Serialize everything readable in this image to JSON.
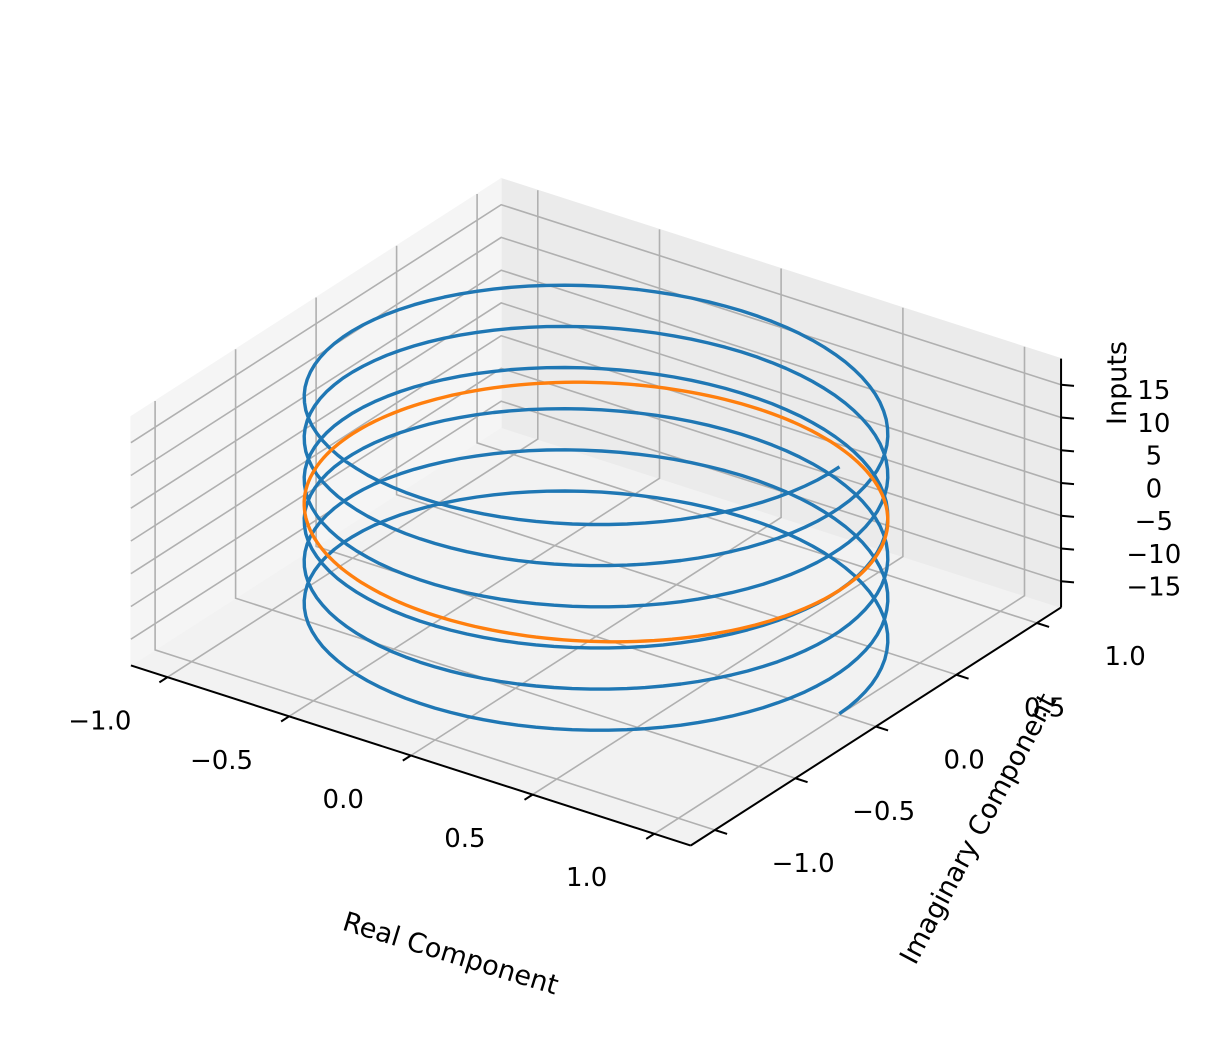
{
  "chart_data": {
    "type": "line",
    "projection": "3d",
    "xlabel": "Real Component",
    "ylabel": "Imaginary Component",
    "zlabel": "Inputs",
    "xlim": [
      -1.15,
      1.15
    ],
    "ylim": [
      -1.15,
      1.15
    ],
    "zlim": [
      -19,
      19
    ],
    "x_ticks": [
      -1.0,
      -0.5,
      0.0,
      0.5,
      1.0
    ],
    "x_tick_labels": [
      "−1.0",
      "−0.5",
      "0.0",
      "0.5",
      "1.0"
    ],
    "y_ticks": [
      -1.0,
      -0.5,
      0.0,
      0.5,
      1.0
    ],
    "y_tick_labels": [
      "−1.0",
      "−0.5",
      "0.0",
      "0.5",
      "1.0"
    ],
    "z_ticks": [
      -15,
      -10,
      -5,
      0,
      5,
      10,
      15
    ],
    "z_tick_labels": [
      "−15",
      "−10",
      "−5",
      "0",
      "5",
      "10",
      "15"
    ],
    "grid": true,
    "series": [
      {
        "color": "#1f77b4",
        "curve": "helix (cos t, sin t, t)",
        "t_range": [
          -18.85,
          18.85
        ],
        "samples": 600
      },
      {
        "color": "#ff7f0e",
        "curve": "unit circle (cos t, sin t, 0)",
        "t_range": [
          0,
          6.2832
        ],
        "samples": 200
      }
    ]
  }
}
